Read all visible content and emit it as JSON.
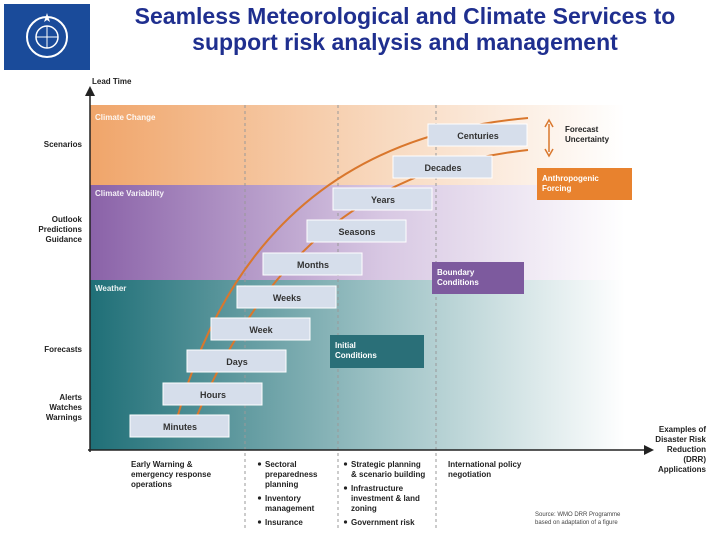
{
  "header": {
    "title": [
      "Seamless Meteorological and Climate  Services to",
      "support risk analysis and management"
    ]
  },
  "axes": {
    "y_title": "Lead Time",
    "x_title": [
      "Examples of",
      "Disaster Risk",
      "Reduction",
      "(DRR)",
      "Applications"
    ]
  },
  "y_labels": [
    [
      "Scenarios"
    ],
    [
      "Outlook",
      "Predictions",
      "Guidance"
    ],
    [
      "Forecasts"
    ],
    [
      "Alerts",
      "Watches",
      "Warnings"
    ]
  ],
  "bands": [
    "Climate Change",
    "Climate Variability",
    "Weather"
  ],
  "time_scales": [
    "Minutes",
    "Hours",
    "Days",
    "Week",
    "Weeks",
    "Months",
    "Seasons",
    "Years",
    "Decades",
    "Centuries"
  ],
  "annotations": {
    "forecast_uncertainty": [
      "Forecast",
      "Uncertainty"
    ],
    "anthropogenic_forcing": [
      "Anthropogenic",
      "Forcing"
    ],
    "boundary_conditions": [
      "Boundary",
      "Conditions"
    ],
    "initial_conditions": [
      "Initial",
      "Conditions"
    ]
  },
  "applications": [
    [
      [
        "Early Warning &",
        "emergency response",
        "operations"
      ]
    ],
    [
      [
        "Sectoral",
        "preparedness",
        "planning"
      ],
      [
        "Inventory",
        "management"
      ],
      [
        "Insurance"
      ]
    ],
    [
      [
        "Strategic planning",
        "& scenario building"
      ],
      [
        "Infrastructure",
        "investment & land",
        "zoning"
      ],
      [
        "Government risk"
      ]
    ],
    [
      [
        "International policy",
        "negotiation"
      ]
    ]
  ],
  "source": [
    "Source: WMO DRR Programme",
    "based on adaptation of a figure"
  ]
}
